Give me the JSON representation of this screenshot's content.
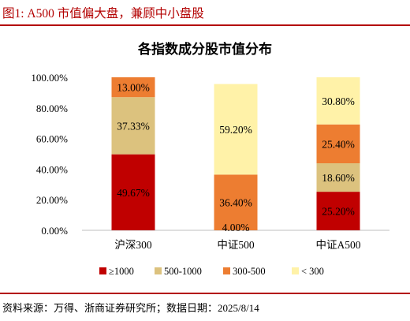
{
  "figure": {
    "title": "图1:   A500 市值偏大盘，兼顾中小盘股",
    "source": "资料来源：万得、浙商证券研究所；数据日期：2025/8/14"
  },
  "chart_data": {
    "type": "bar",
    "stacked": true,
    "title": "各指数成分股市值分布",
    "categories": [
      "沪深300",
      "中证500",
      "中证A500"
    ],
    "series": [
      {
        "name": "≥1000",
        "color": "#c00000",
        "values": [
          49.67,
          0,
          25.2
        ],
        "labels": [
          "49.67%",
          "",
          "25.20%"
        ]
      },
      {
        "name": "500-1000",
        "color": "#dcc27e",
        "values": [
          37.33,
          0,
          18.6
        ],
        "labels": [
          "37.33%",
          "",
          "18.60%"
        ]
      },
      {
        "name": "300-500",
        "color": "#ed7d31",
        "values": [
          13.0,
          36.4,
          25.4
        ],
        "labels": [
          "13.00%",
          "36.40%",
          "25.40%"
        ]
      },
      {
        "name": "< 300",
        "color": "#fff2a8",
        "values": [
          0,
          59.2,
          30.8
        ],
        "labels": [
          "",
          "59.20%",
          "30.80%"
        ]
      }
    ],
    "extra_labels": [
      {
        "category_index": 1,
        "text": "4.00%",
        "value": 4.0
      }
    ],
    "ylim": [
      0,
      100
    ],
    "yticks": [
      "0.00%",
      "20.00%",
      "40.00%",
      "60.00%",
      "80.00%",
      "100.00%"
    ],
    "grid": false,
    "legend_position": "bottom"
  }
}
